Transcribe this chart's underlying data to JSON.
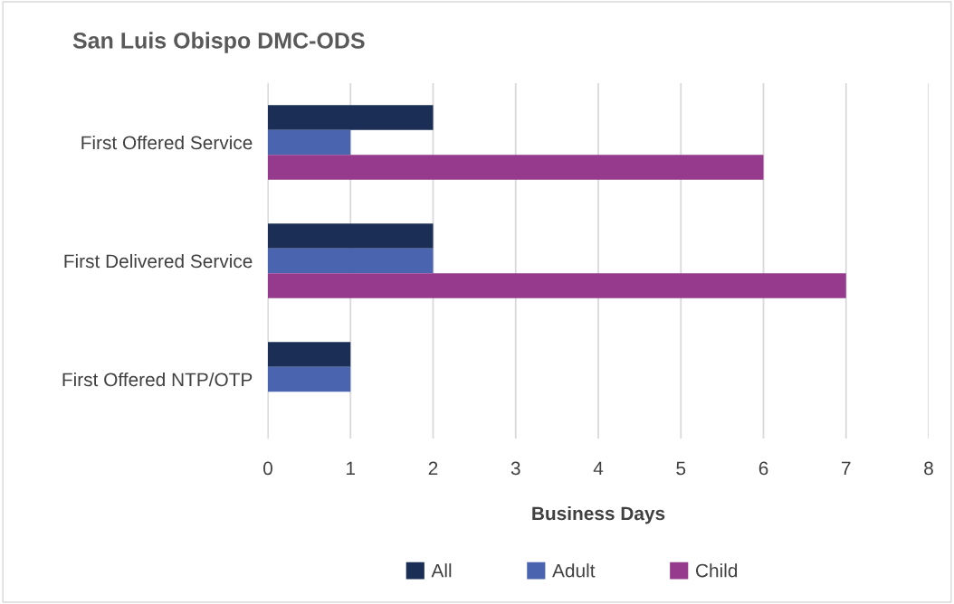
{
  "chart_data": {
    "type": "bar",
    "orientation": "horizontal",
    "title": "San Luis Obispo DMC-ODS",
    "xlabel": "Business Days",
    "categories": [
      "First Offered Service",
      "First Delivered Service",
      "First Offered NTP/OTP"
    ],
    "series": [
      {
        "name": "All",
        "color": "#1b2f56",
        "values": [
          2,
          2,
          1
        ]
      },
      {
        "name": "Adult",
        "color": "#4a64b0",
        "values": [
          1,
          2,
          1
        ]
      },
      {
        "name": "Child",
        "color": "#963a8e",
        "values": [
          6,
          7,
          null
        ]
      }
    ],
    "xlim": [
      0,
      8
    ],
    "xticks": [
      0,
      1,
      2,
      3,
      4,
      5,
      6,
      7,
      8
    ],
    "grid": "x",
    "legend": "bottom"
  }
}
